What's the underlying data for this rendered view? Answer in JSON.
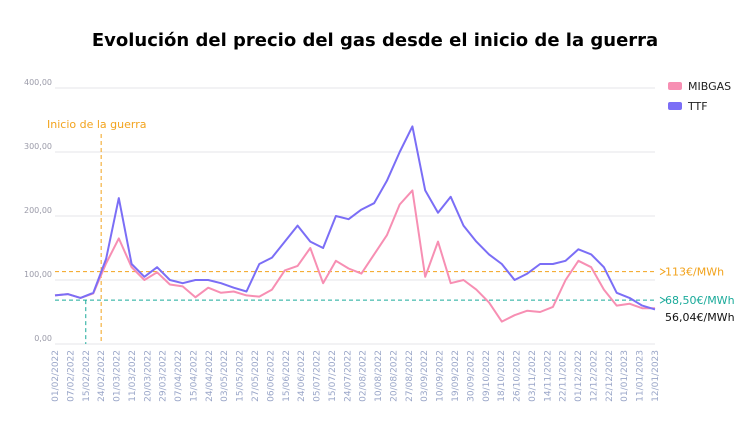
{
  "chart_data": {
    "type": "line",
    "title": "Evolución del precio del gas desde el inicio de la guerra",
    "yticks": [
      "0,00",
      "100,00",
      "200,00",
      "300,00",
      "400,00"
    ],
    "ylim": [
      0,
      400
    ],
    "grid": true,
    "legend_position": "top-right",
    "xticks": [
      "01/02/2022",
      "07/02/2022",
      "15/02/2022",
      "24/02/2022",
      "01/03/2022",
      "11/03/2022",
      "20/03/2022",
      "29/03/2022",
      "07/04/2022",
      "15/04/2022",
      "24/04/2022",
      "03/05/2022",
      "15/05/2022",
      "27/05/2022",
      "06/06/2022",
      "15/06/2022",
      "24/06/2022",
      "05/07/2022",
      "15/07/2022",
      "24/07/2022",
      "02/08/2022",
      "10/08/2022",
      "20/08/2022",
      "27/08/2022",
      "03/09/2022",
      "10/09/2022",
      "19/09/2022",
      "30/09/2022",
      "09/10/2022",
      "18/10/2022",
      "26/10/2022",
      "03/11/2022",
      "14/11/2022",
      "22/11/2022",
      "01/12/2022",
      "12/12/2022",
      "22/12/2022",
      "01/01/2023",
      "11/01/2023",
      "12/01/2023"
    ],
    "highlight_ticks": {
      "15/02/2022": "#1aaa9a",
      "24/02/2022": "#e8a317",
      "27/08/2022": "#3b3bbf"
    },
    "series": [
      {
        "name": "MIBGAS",
        "color": "#f78fb3",
        "points": [
          [
            0,
            76
          ],
          [
            1,
            78
          ],
          [
            2,
            72
          ],
          [
            3,
            79
          ],
          [
            4,
            126
          ],
          [
            5,
            165
          ],
          [
            6,
            120
          ],
          [
            7,
            100
          ],
          [
            8,
            112
          ],
          [
            9,
            93
          ],
          [
            10,
            90
          ],
          [
            11,
            73
          ],
          [
            12,
            88
          ],
          [
            13,
            80
          ],
          [
            14,
            82
          ],
          [
            15,
            76
          ],
          [
            16,
            74
          ],
          [
            17,
            85
          ],
          [
            18,
            115
          ],
          [
            19,
            122
          ],
          [
            20,
            150
          ],
          [
            21,
            95
          ],
          [
            22,
            130
          ],
          [
            23,
            118
          ],
          [
            24,
            110
          ],
          [
            25,
            140
          ],
          [
            26,
            170
          ],
          [
            27,
            218
          ],
          [
            28,
            240
          ],
          [
            29,
            105
          ],
          [
            30,
            160
          ],
          [
            31,
            95
          ],
          [
            32,
            100
          ],
          [
            33,
            85
          ],
          [
            34,
            65
          ],
          [
            35,
            35
          ],
          [
            36,
            45
          ],
          [
            37,
            52
          ],
          [
            38,
            50
          ],
          [
            39,
            58
          ],
          [
            40,
            100
          ],
          [
            41,
            130
          ],
          [
            42,
            120
          ],
          [
            43,
            85
          ],
          [
            44,
            60
          ],
          [
            45,
            63
          ],
          [
            46,
            56
          ],
          [
            47,
            56
          ]
        ]
      },
      {
        "name": "TTF",
        "color": "#7b6ef6",
        "points": [
          [
            0,
            76
          ],
          [
            1,
            78
          ],
          [
            2,
            72
          ],
          [
            3,
            80
          ],
          [
            4,
            133
          ],
          [
            5,
            228
          ],
          [
            6,
            125
          ],
          [
            7,
            105
          ],
          [
            8,
            120
          ],
          [
            9,
            100
          ],
          [
            10,
            95
          ],
          [
            11,
            100
          ],
          [
            12,
            100
          ],
          [
            13,
            95
          ],
          [
            14,
            88
          ],
          [
            15,
            82
          ],
          [
            16,
            125
          ],
          [
            17,
            135
          ],
          [
            18,
            160
          ],
          [
            19,
            185
          ],
          [
            20,
            160
          ],
          [
            21,
            150
          ],
          [
            22,
            200
          ],
          [
            23,
            195
          ],
          [
            24,
            210
          ],
          [
            25,
            220
          ],
          [
            26,
            255
          ],
          [
            27,
            300
          ],
          [
            28,
            340
          ],
          [
            29,
            240
          ],
          [
            30,
            205
          ],
          [
            31,
            230
          ],
          [
            32,
            185
          ],
          [
            33,
            160
          ],
          [
            34,
            140
          ],
          [
            35,
            125
          ],
          [
            36,
            100
          ],
          [
            37,
            110
          ],
          [
            38,
            125
          ],
          [
            39,
            125
          ],
          [
            40,
            130
          ],
          [
            41,
            148
          ],
          [
            42,
            140
          ],
          [
            43,
            120
          ],
          [
            44,
            80
          ],
          [
            45,
            72
          ],
          [
            46,
            60
          ],
          [
            47,
            54
          ]
        ]
      }
    ],
    "reference_lines": [
      {
        "value": 113,
        "label": "113€/MWh",
        "color": "#f2a31d"
      },
      {
        "value": 68.5,
        "label": "68,50€/MWh",
        "color": "#1aaa9a"
      }
    ],
    "end_label": {
      "value": 56.04,
      "label": "56,04€/MWh",
      "color": "#111111"
    },
    "annotation": {
      "label": "Inicio de la guerra",
      "color": "#f2a31d"
    }
  }
}
